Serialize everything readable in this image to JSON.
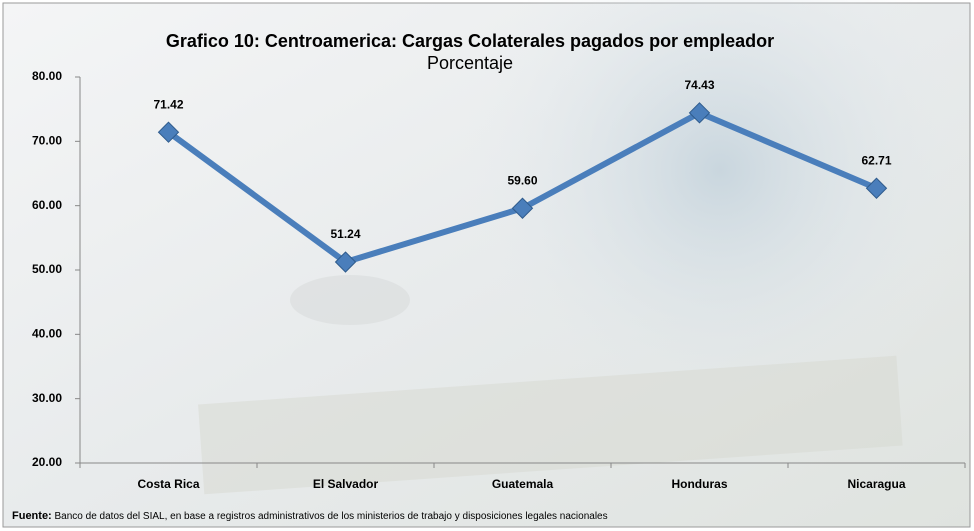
{
  "chart_data": {
    "type": "line",
    "title": "Grafico 10: Centroamerica: Cargas Colaterales pagados por empleador",
    "subtitle": "Porcentaje",
    "categories": [
      "Costa Rica",
      "El Salvador",
      "Guatemala",
      "Honduras",
      "Nicaragua"
    ],
    "values": [
      71.42,
      51.24,
      59.6,
      74.43,
      62.71
    ],
    "value_labels": [
      "71.42",
      "51.24",
      "59.60",
      "74.43",
      "62.71"
    ],
    "color": "#4a7ebb",
    "ylim": [
      20,
      80
    ],
    "yticks": [
      {
        "value": 20,
        "label": "20.00"
      },
      {
        "value": 30,
        "label": "30.00"
      },
      {
        "value": 40,
        "label": "40.00"
      },
      {
        "value": 50,
        "label": "50.00"
      },
      {
        "value": 60,
        "label": "60.00"
      },
      {
        "value": 70,
        "label": "70.00"
      },
      {
        "value": 80,
        "label": "80.00"
      }
    ],
    "grid": false,
    "note_label": "Fuente:",
    "note": "Banco de datos del SIAL, en base a registros administrativos de los ministerios de trabajo y disposiciones legales nacionales"
  }
}
